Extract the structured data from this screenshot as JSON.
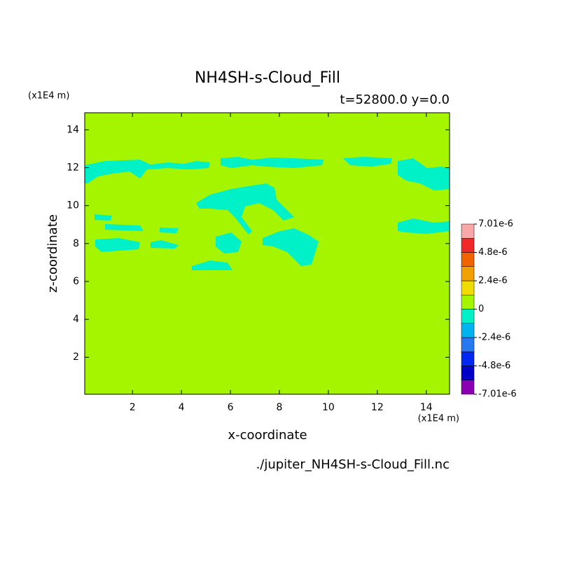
{
  "chart_data": {
    "type": "contour",
    "title": "NH4SH-s-Cloud_Fill",
    "subtitle": "t=52800.0 y=0.0",
    "y_unit": "(x1E4 m)",
    "x_unit": "(x1E4 m)",
    "x_label": "x-coordinate",
    "y_label": "z-coordinate",
    "source": "./jupiter_NH4SH-s-Cloud_Fill.nc",
    "xlim": [
      0.05,
      14.95
    ],
    "ylim": [
      0.05,
      14.9
    ],
    "xticks": [
      2,
      4,
      6,
      8,
      10,
      12,
      14
    ],
    "yticks": [
      2,
      4,
      6,
      8,
      10,
      12,
      14
    ],
    "colorbar": {
      "levels": [
        -7.01e-06,
        -6e-06,
        -4.8e-06,
        -3.6e-06,
        -2.4e-06,
        -1.2e-06,
        0,
        1.2e-06,
        2.4e-06,
        3.6e-06,
        4.8e-06,
        6e-06,
        7.01e-06
      ],
      "colors": [
        "#8c00b4",
        "#0000c8",
        "#0028f0",
        "#2878f0",
        "#00b4f0",
        "#00f0c8",
        "#a6f500",
        "#f0dc00",
        "#f0a000",
        "#f06400",
        "#f02828",
        "#f8a8a8"
      ],
      "ticks": [
        {
          "value": -7.01e-06,
          "label": "-7.01e-6"
        },
        {
          "value": -4.8e-06,
          "label": "-4.8e-6"
        },
        {
          "value": -2.4e-06,
          "label": "-2.4e-6"
        },
        0,
        {
          "value": 2.4e-06,
          "label": "2.4e-6"
        },
        {
          "value": 4.8e-06,
          "label": "4.8e-6"
        },
        {
          "value": 7.01e-06,
          "label": "7.01e-6"
        }
      ]
    }
  }
}
